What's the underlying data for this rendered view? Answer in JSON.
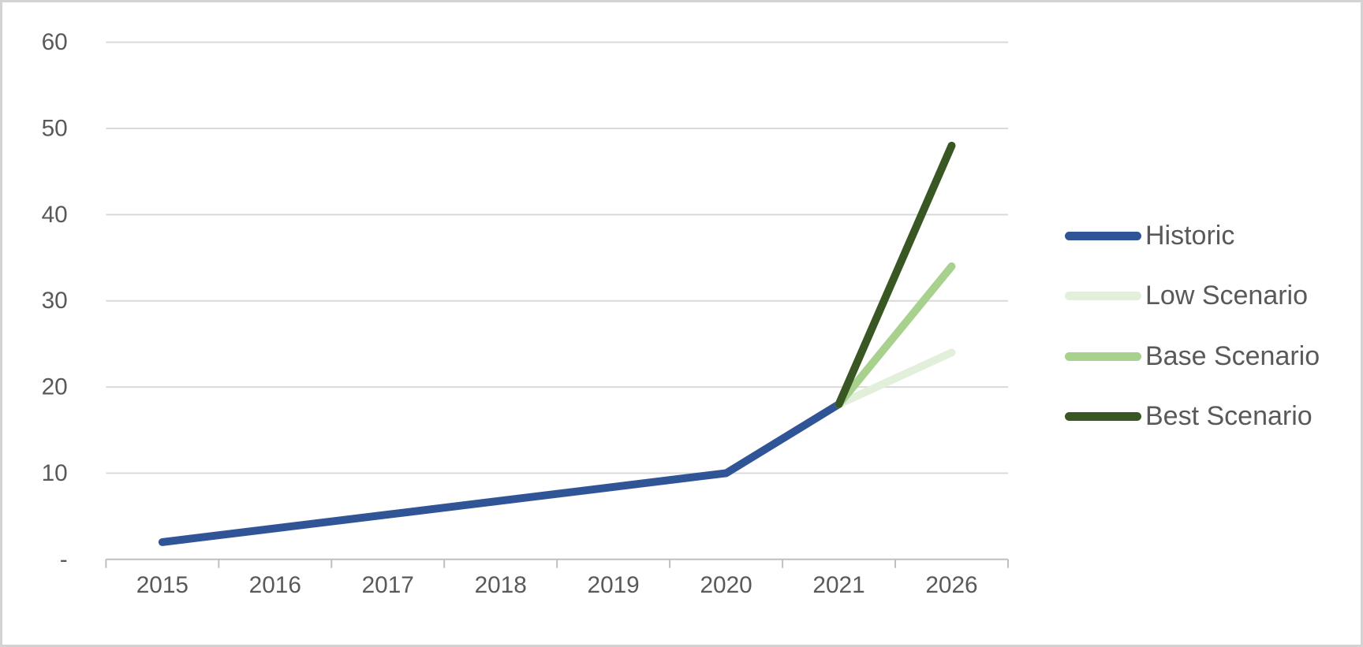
{
  "chart_data": {
    "type": "line",
    "title": "",
    "xlabel": "",
    "ylabel": "",
    "categories": [
      "2015",
      "2016",
      "2017",
      "2018",
      "2019",
      "2020",
      "2021",
      "2026"
    ],
    "series": [
      {
        "name": "Historic",
        "color": "#2F5597",
        "values": [
          2,
          3.6,
          5.2,
          6.8,
          8.4,
          10,
          18,
          null
        ]
      },
      {
        "name": "Low Scenario",
        "color": "#E2EFDA",
        "values": [
          null,
          null,
          null,
          null,
          null,
          null,
          18,
          24
        ]
      },
      {
        "name": "Base Scenario",
        "color": "#A9D18E",
        "values": [
          null,
          null,
          null,
          null,
          null,
          null,
          18,
          34
        ]
      },
      {
        "name": "Best Scenario",
        "color": "#385723",
        "values": [
          null,
          null,
          null,
          null,
          null,
          null,
          18,
          48
        ]
      }
    ],
    "ylim": [
      0,
      60
    ],
    "y_ticks": [
      0,
      10,
      20,
      30,
      40,
      50,
      60
    ],
    "y_tick_labels": [
      "-",
      "10",
      "20",
      "30",
      "40",
      "50",
      "60"
    ],
    "grid": true,
    "legend_position": "right",
    "legend_entries": [
      "Historic",
      "Low Scenario",
      "Base Scenario",
      "Best Scenario"
    ]
  },
  "style_colors": {
    "label_text": "#595959",
    "gridline": "#D9D9D9",
    "axis_line": "#BFBFBF",
    "background": "#FFFFFF",
    "frame_border": "#D3D3D3"
  }
}
